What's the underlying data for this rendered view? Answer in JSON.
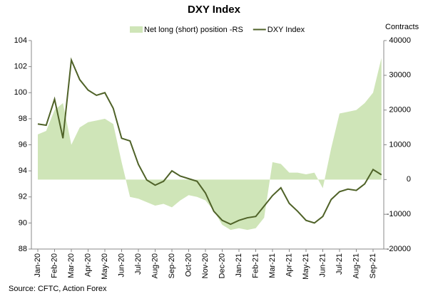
{
  "chart_data": {
    "type": "line",
    "title": "DXY Index",
    "y2label": "Contracts",
    "source": "Source: CFTC, Action Forex",
    "categories": [
      "Jan-20",
      null,
      "Feb-20",
      null,
      "Mar-20",
      null,
      "Apr-20",
      null,
      "May-20",
      null,
      "Jun-20",
      null,
      "Jul-20",
      null,
      "Aug-20",
      null,
      "Sep-20",
      null,
      "Oct-20",
      null,
      "Nov-20",
      null,
      "Dec-20",
      null,
      "Jan-21",
      null,
      "Feb-21",
      null,
      "Mar-21",
      null,
      "Apr-21",
      null,
      "May-21",
      null,
      "Jun-21",
      null,
      "Jul-21",
      null,
      "Aug-21",
      null,
      "Sep-21",
      null
    ],
    "series": [
      {
        "name": "Net long (short) position -RS",
        "type": "area",
        "axis": "y2",
        "color": "#cfe5b8",
        "values": [
          13000,
          14000,
          20000,
          22000,
          10000,
          15000,
          16500,
          17000,
          17500,
          16000,
          5000,
          -5000,
          -5500,
          -6500,
          -7500,
          -7000,
          -8000,
          -6000,
          -4500,
          -5000,
          -6000,
          -9000,
          -13000,
          -14500,
          -14000,
          -14500,
          -14000,
          -11000,
          5000,
          4500,
          2000,
          2000,
          1500,
          2000,
          -2500,
          9000,
          19000,
          19500,
          20000,
          22000,
          25000,
          35000
        ]
      },
      {
        "name": "DXY Index",
        "type": "line",
        "color": "#4f6228",
        "values": [
          97.6,
          97.5,
          99.5,
          96.5,
          102.5,
          101.0,
          100.2,
          99.8,
          100.0,
          98.8,
          96.5,
          96.3,
          94.5,
          93.3,
          92.9,
          93.2,
          94.0,
          93.6,
          93.4,
          93.2,
          92.3,
          90.9,
          90.2,
          89.9,
          90.2,
          90.4,
          90.5,
          91.3,
          92.1,
          92.7,
          91.5,
          90.9,
          90.2,
          90.0,
          90.5,
          91.8,
          92.4,
          92.6,
          92.5,
          93.0,
          94.1,
          93.7
        ]
      }
    ],
    "ylim": [
      88,
      104
    ],
    "yticks": [
      88,
      90,
      92,
      94,
      96,
      98,
      100,
      102,
      104
    ],
    "y2lim": [
      -20000,
      40000
    ],
    "y2ticks": [
      -20000,
      -10000,
      0,
      10000,
      20000,
      30000,
      40000
    ],
    "legend": "top",
    "grid": false
  }
}
